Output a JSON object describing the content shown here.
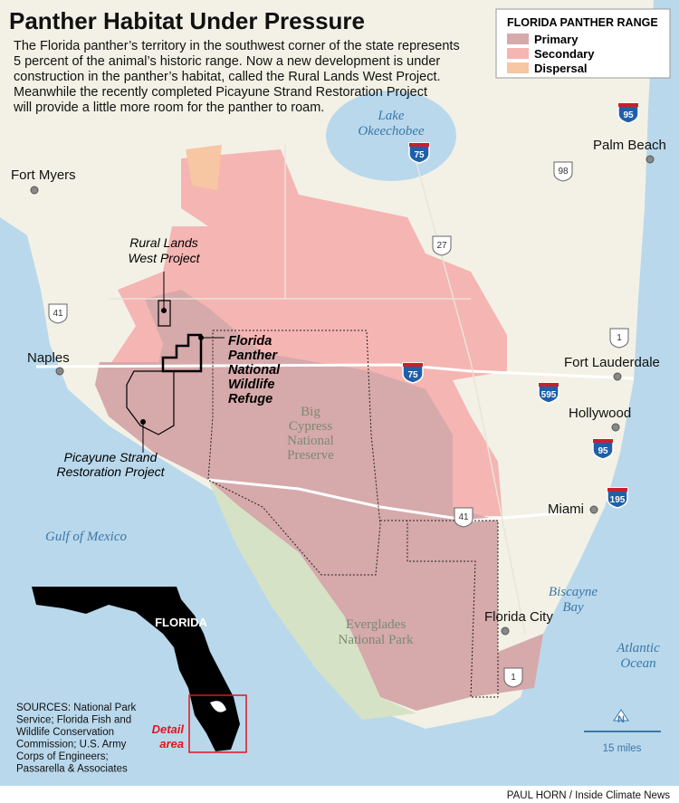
{
  "title": "Panther Habitat Under Pressure",
  "description": [
    "The Florida panther’s territory in the southwest corner of the state represents",
    "5 percent of the animal’s historic range. Now a new development is under",
    "construction in the panther’s habitat, called the Rural Lands West Project.",
    "Meanwhile the recently completed Picayune Strand Restoration Project",
    "will provide a little more room for the panther to roam."
  ],
  "legend": {
    "title": "FLORIDA PANTHER RANGE",
    "items": [
      {
        "label": "Primary",
        "color": "#d6a9ab"
      },
      {
        "label": "Secondary",
        "color": "#f5b5b3"
      },
      {
        "label": "Dispersal",
        "color": "#f7c6a3"
      }
    ]
  },
  "places": [
    "Fort Myers",
    "Naples",
    "Palm Beach",
    "Fort Lauderdale",
    "Hollywood",
    "Miami",
    "Florida City"
  ],
  "areas": {
    "rural_lands": [
      "Rural Lands",
      "West Project"
    ],
    "refuge": [
      "Florida",
      "Panther",
      "National",
      "Wildlife",
      "Refuge"
    ],
    "big_cypress": [
      "Big",
      "Cypress",
      "National",
      "Preserve"
    ],
    "picayune": [
      "Picayune Strand",
      "Restoration Project"
    ],
    "everglades": [
      "Everglades",
      "National Park"
    ]
  },
  "water": {
    "lake": [
      "Lake",
      "Okeechobee"
    ],
    "gulf": [
      "Gulf of Mexico"
    ],
    "biscayne": [
      "Biscayne",
      "Bay"
    ],
    "atlantic": [
      "Atlantic",
      "Ocean"
    ]
  },
  "highways": [
    {
      "number": "75",
      "type": "interstate"
    },
    {
      "number": "95",
      "type": "interstate"
    },
    {
      "number": "98",
      "type": "us"
    },
    {
      "number": "27",
      "type": "us"
    },
    {
      "number": "41",
      "type": "us"
    },
    {
      "number": "1",
      "type": "us"
    },
    {
      "number": "75",
      "type": "interstate"
    },
    {
      "number": "595",
      "type": "interstate"
    },
    {
      "number": "95",
      "type": "interstate"
    },
    {
      "number": "195",
      "type": "interstate"
    },
    {
      "number": "41",
      "type": "us"
    },
    {
      "number": "1",
      "type": "us"
    }
  ],
  "inset": {
    "label": "FLORIDA",
    "detail": [
      "Detail",
      "area"
    ]
  },
  "sources": [
    "SOURCES: National Park",
    "Service; Florida Fish and",
    "Wildlife Conservation",
    "Commission; U.S. Army",
    "Corps of Engineers;",
    "Passarella & Associates"
  ],
  "scale": "15 miles",
  "north": "N",
  "credit": "PAUL HORN / Inside Climate News"
}
